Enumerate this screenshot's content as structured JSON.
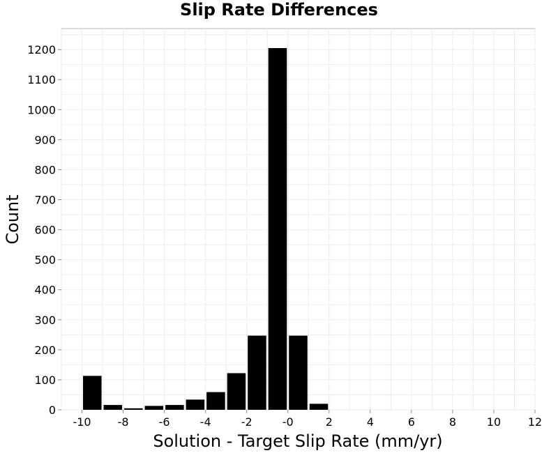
{
  "chart_data": {
    "type": "bar",
    "title": "Slip Rate Differences",
    "xlabel": "Solution - Target Slip Rate (mm/yr)",
    "ylabel": "Count",
    "xlim": [
      -11,
      12
    ],
    "ylim": [
      0,
      1270
    ],
    "x_ticks": [
      -10,
      -8,
      -6,
      -4,
      -2,
      0,
      2,
      4,
      6,
      8,
      10,
      12
    ],
    "x_tick_labels": [
      "-10",
      "-8",
      "-6",
      "-4",
      "-2",
      "-0",
      "2",
      "4",
      "6",
      "8",
      "10",
      "12"
    ],
    "y_ticks": [
      0,
      100,
      200,
      300,
      400,
      500,
      600,
      700,
      800,
      900,
      1000,
      1100,
      1200
    ],
    "y_tick_labels": [
      "0",
      "100",
      "200",
      "300",
      "400",
      "500",
      "600",
      "700",
      "800",
      "900",
      "1000",
      "1100",
      "1200"
    ],
    "bin_width": 1,
    "bin_centers": [
      -9.5,
      -8.5,
      -7.5,
      -6.5,
      -5.5,
      -4.5,
      -3.5,
      -2.5,
      -1.5,
      -0.5,
      0.5,
      1.5
    ],
    "values": [
      113,
      16,
      5,
      13,
      16,
      34,
      59,
      122,
      247,
      1205,
      247,
      20
    ],
    "bar_color": "#000000",
    "grid": true,
    "legend": false
  }
}
